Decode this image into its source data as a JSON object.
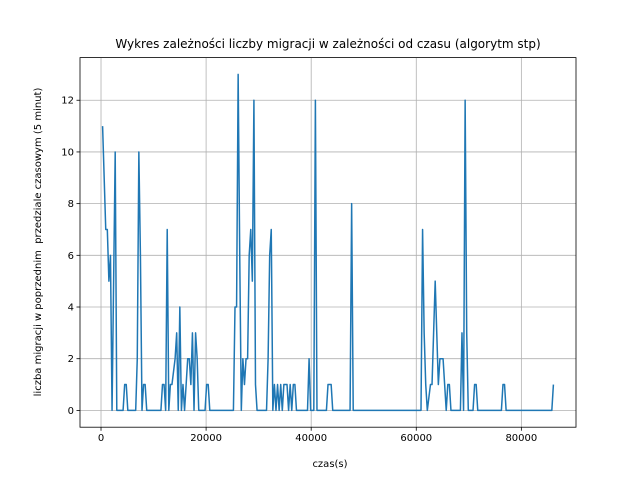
{
  "chart_data": {
    "type": "line",
    "title": "Wykres zależności liczby migracji w zależności od czasu (algorytm stp)",
    "xlabel": "czas(s)",
    "ylabel": "liczba migracji w poprzednim  przedziale czasowym (5 minut)",
    "color": "#1f77b4",
    "grid": true,
    "xlim": [
      -4000,
      90400
    ],
    "ylim": [
      -0.65,
      13.65
    ],
    "xticks": [
      0,
      20000,
      40000,
      60000,
      80000
    ],
    "yticks": [
      0,
      2,
      4,
      6,
      8,
      10,
      12
    ],
    "x": [
      300,
      900,
      1200,
      1500,
      1800,
      2100,
      2700,
      3000,
      4200,
      4500,
      4800,
      5100,
      6600,
      6900,
      7200,
      7500,
      7800,
      8100,
      8400,
      8700,
      11400,
      11700,
      12000,
      12300,
      12600,
      12900,
      13200,
      13500,
      14100,
      14400,
      14700,
      15000,
      15300,
      15600,
      15900,
      16500,
      16800,
      17100,
      17400,
      17700,
      18000,
      18300,
      18600,
      19800,
      20100,
      20400,
      20700,
      25200,
      25500,
      25800,
      26100,
      26400,
      26700,
      27000,
      27300,
      27600,
      27900,
      28200,
      28500,
      28800,
      29100,
      29400,
      29700,
      31500,
      31800,
      32100,
      32400,
      32700,
      33000,
      33300,
      33600,
      33900,
      34200,
      34500,
      34800,
      35400,
      35700,
      36000,
      36300,
      36600,
      36900,
      37200,
      39300,
      39600,
      39900,
      40500,
      40800,
      41100,
      42900,
      43200,
      43800,
      44100,
      47400,
      47700,
      48000,
      60900,
      61200,
      61500,
      61800,
      62100,
      62700,
      63000,
      63300,
      63600,
      63900,
      64200,
      64500,
      65100,
      65400,
      65700,
      66000,
      66300,
      66600,
      68400,
      68700,
      69000,
      69300,
      69600,
      69900,
      70800,
      71100,
      71400,
      71700,
      76200,
      76500,
      76800,
      77100,
      85800,
      86100
    ],
    "values": [
      11,
      7,
      7,
      5,
      6,
      0,
      10,
      0,
      0,
      1,
      1,
      0,
      0,
      2,
      10,
      6,
      0,
      1,
      1,
      0,
      0,
      1,
      1,
      0,
      7,
      0,
      1,
      1,
      2,
      3,
      0,
      4,
      0,
      1,
      0,
      2,
      2,
      1,
      3,
      0,
      3,
      2,
      0,
      0,
      1,
      1,
      0,
      0,
      4,
      4,
      13,
      6,
      0,
      2,
      1,
      2,
      2,
      6,
      7,
      5,
      12,
      1,
      0,
      0,
      2,
      6,
      7,
      0,
      1,
      0,
      1,
      0,
      1,
      0,
      1,
      1,
      0,
      1,
      0,
      1,
      1,
      0,
      0,
      2,
      0,
      0,
      12,
      0,
      0,
      1,
      1,
      0,
      0,
      8,
      0,
      0,
      7,
      3,
      1,
      0,
      1,
      1,
      3,
      5,
      3,
      1,
      2,
      2,
      1,
      0,
      1,
      1,
      0,
      0,
      3,
      0,
      12,
      3,
      0,
      0,
      1,
      1,
      0,
      0,
      1,
      1,
      0,
      0,
      1
    ]
  }
}
